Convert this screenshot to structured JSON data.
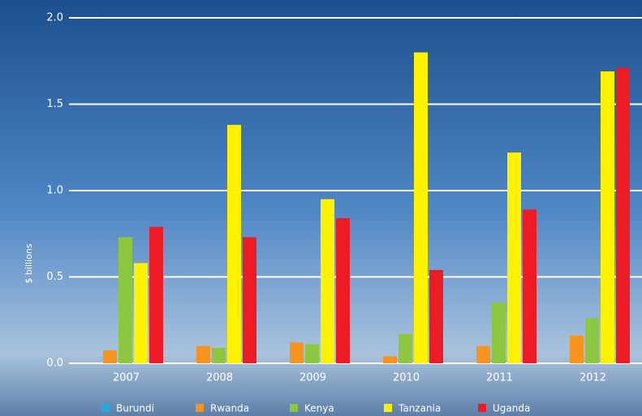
{
  "chart_data": {
    "type": "bar",
    "y_label": "$ billions",
    "categories": [
      "2007",
      "2008",
      "2009",
      "2010",
      "2011",
      "2012"
    ],
    "series": [
      {
        "name": "Burundi",
        "color": "#29a8e0",
        "values": [
          0,
          0,
          0,
          0,
          0,
          0
        ]
      },
      {
        "name": "Rwanda",
        "color": "#f7941d",
        "values": [
          0.075,
          0.1,
          0.12,
          0.04,
          0.1,
          0.16
        ]
      },
      {
        "name": "Kenya",
        "color": "#8dc63f",
        "values": [
          0.73,
          0.09,
          0.11,
          0.17,
          0.35,
          0.26
        ]
      },
      {
        "name": "Tanzania",
        "color": "#fff200",
        "values": [
          0.58,
          1.38,
          0.95,
          1.8,
          1.22,
          1.69
        ]
      },
      {
        "name": "Uganda",
        "color": "#ed1c24",
        "values": [
          0.79,
          0.73,
          0.84,
          0.54,
          0.89,
          1.71
        ]
      }
    ],
    "ylim": [
      0,
      2
    ],
    "yticks": [
      {
        "value": 0,
        "label": "0.0"
      },
      0.5,
      {
        "value": 1,
        "label": "1.0"
      },
      1.5,
      {
        "value": 2,
        "label": "2.0"
      }
    ],
    "grid": true,
    "legend": "bottom"
  }
}
